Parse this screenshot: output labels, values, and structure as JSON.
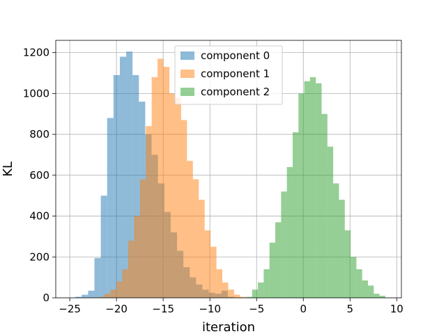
{
  "chart_data": {
    "type": "bar",
    "subtype": "histogram",
    "xlabel": "iteration",
    "ylabel": "KL",
    "xlim": [
      -26.5,
      10.5
    ],
    "ylim": [
      0,
      1260
    ],
    "xticks": [
      -25,
      -20,
      -15,
      -10,
      -5,
      0,
      5,
      10
    ],
    "yticks": [
      0,
      200,
      400,
      600,
      800,
      1000,
      1200
    ],
    "grid": true,
    "legend_position": "top-center",
    "alpha": 0.5,
    "series": [
      {
        "name": "component 0",
        "color": "#1f77b4",
        "bin_edges": [
          -24.4,
          -23.72,
          -23.04,
          -22.36,
          -21.68,
          -21.0,
          -20.32,
          -19.64,
          -18.96,
          -18.28,
          -17.6,
          -16.92,
          -16.24,
          -15.56,
          -14.88,
          -14.2,
          -13.52,
          -12.84,
          -12.16,
          -11.48,
          -10.8,
          -10.12,
          -9.44,
          -8.76,
          -8.08,
          -7.4
        ],
        "counts": [
          5,
          15,
          35,
          195,
          500,
          880,
          1090,
          1180,
          1205,
          1090,
          960,
          800,
          700,
          560,
          420,
          320,
          230,
          150,
          100,
          65,
          40,
          25,
          20,
          35,
          5
        ]
      },
      {
        "name": "component 1",
        "color": "#ff7f0e",
        "bin_edges": [
          -21.9,
          -21.27,
          -20.64,
          -20.01,
          -19.38,
          -18.75,
          -18.12,
          -17.49,
          -16.86,
          -16.23,
          -15.6,
          -14.97,
          -14.34,
          -13.71,
          -13.08,
          -12.45,
          -11.82,
          -11.19,
          -10.56,
          -9.93,
          -9.3,
          -8.67,
          -8.04,
          -7.41,
          -6.78,
          -6.15
        ],
        "counts": [
          5,
          20,
          40,
          80,
          140,
          280,
          400,
          580,
          840,
          1080,
          1170,
          1130,
          1000,
          980,
          870,
          670,
          580,
          480,
          330,
          250,
          140,
          75,
          40,
          15,
          5
        ]
      },
      {
        "name": "component 2",
        "color": "#2ca02c",
        "bin_edges": [
          -6.1,
          -5.48,
          -4.86,
          -4.24,
          -3.62,
          -3.0,
          -2.38,
          -1.76,
          -1.14,
          -0.52,
          0.1,
          0.72,
          1.34,
          1.96,
          2.58,
          3.2,
          3.82,
          4.44,
          5.06,
          5.68,
          6.3,
          6.92,
          7.54,
          8.16,
          8.78
        ],
        "counts": [
          5,
          40,
          75,
          140,
          270,
          370,
          520,
          640,
          810,
          1000,
          1060,
          1080,
          1050,
          900,
          740,
          560,
          480,
          330,
          200,
          140,
          85,
          60,
          20,
          10
        ]
      }
    ]
  }
}
